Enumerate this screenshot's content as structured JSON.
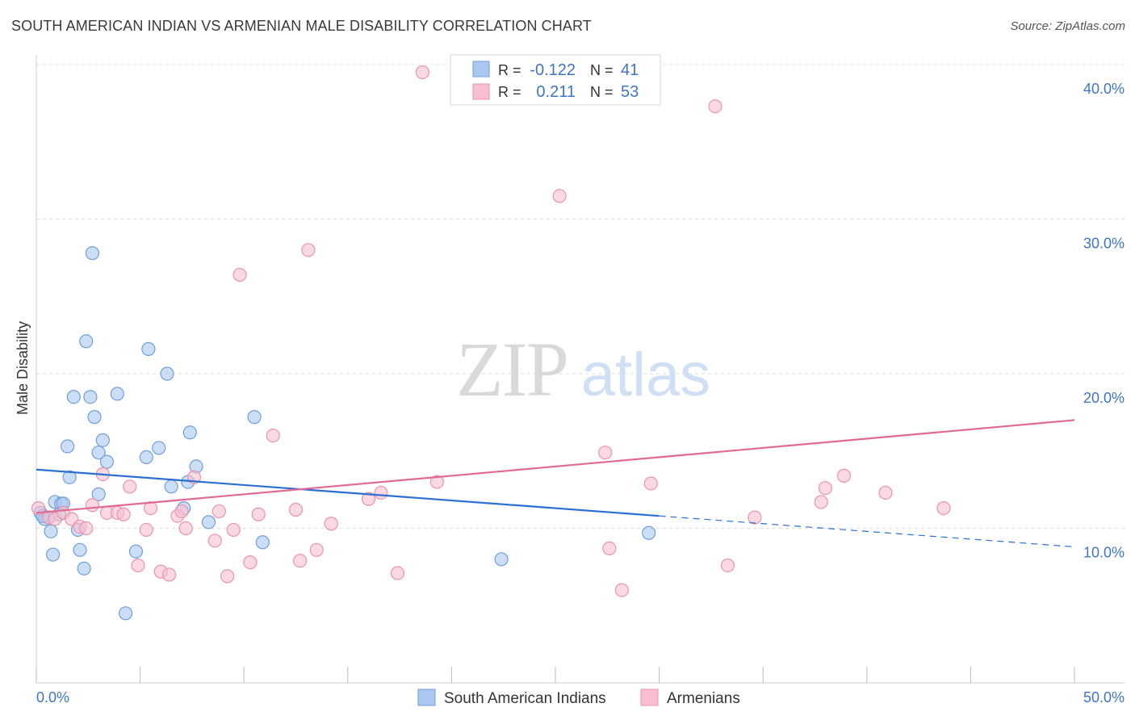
{
  "title": "SOUTH AMERICAN INDIAN VS ARMENIAN MALE DISABILITY CORRELATION CHART",
  "source": "Source: ZipAtlas.com",
  "watermark": {
    "zip": "ZIP",
    "atlas": "atlas"
  },
  "colors": {
    "blue_fill": "#aac8ef",
    "blue_stroke": "#6f9fdc",
    "blue_line": "#2a6fd1",
    "pink_fill": "#f7bfd0",
    "pink_stroke": "#ea93ad",
    "pink_line": "#e06a94",
    "tick_text": "#3f74c4",
    "grid": "#dddddd"
  },
  "legend": {
    "rows": [
      {
        "r_label": "R =",
        "r_value": "-0.122",
        "n_label": "N =",
        "n_value": "41"
      },
      {
        "r_label": "R =",
        "r_value": "0.211",
        "n_label": "N =",
        "n_value": "53"
      }
    ]
  },
  "chart_data": {
    "type": "scatter",
    "title": "SOUTH AMERICAN INDIAN VS ARMENIAN MALE DISABILITY CORRELATION CHART",
    "xlabel": "",
    "ylabel": "Male Disability",
    "xlim": [
      0,
      50
    ],
    "ylim": [
      0,
      40
    ],
    "x_ticks": [
      0,
      5,
      10,
      15,
      20,
      25,
      30,
      35,
      40,
      45,
      50
    ],
    "x_tick_labels": {
      "0": "0.0%",
      "50": "50.0%"
    },
    "y_ticks": [
      10,
      20,
      30,
      40
    ],
    "y_tick_labels": [
      "10.0%",
      "20.0%",
      "30.0%",
      "40.0%"
    ],
    "grid": true,
    "legend_position": "top-center",
    "series": [
      {
        "name": "South American Indians",
        "color": "#aac8ef",
        "r": -0.122,
        "n": 41,
        "trend": {
          "x0": 0,
          "y0": 13.8,
          "x1": 30,
          "y1": 10.8,
          "dashed_to_x": 50,
          "dashed_to_y": 8.8
        },
        "points": [
          [
            0.2,
            11.0
          ],
          [
            0.4,
            10.6
          ],
          [
            0.6,
            10.7
          ],
          [
            0.7,
            9.8
          ],
          [
            0.8,
            8.3
          ],
          [
            0.9,
            11.7
          ],
          [
            1.1,
            10.9
          ],
          [
            1.2,
            11.6
          ],
          [
            1.3,
            11.6
          ],
          [
            1.5,
            15.3
          ],
          [
            1.6,
            13.3
          ],
          [
            1.8,
            18.5
          ],
          [
            2.0,
            9.9
          ],
          [
            2.1,
            8.6
          ],
          [
            2.3,
            7.4
          ],
          [
            2.4,
            22.1
          ],
          [
            2.6,
            18.5
          ],
          [
            2.7,
            27.8
          ],
          [
            2.8,
            17.2
          ],
          [
            3.0,
            14.9
          ],
          [
            3.0,
            12.2
          ],
          [
            3.2,
            15.7
          ],
          [
            3.4,
            14.3
          ],
          [
            3.9,
            18.7
          ],
          [
            4.3,
            4.5
          ],
          [
            4.8,
            8.5
          ],
          [
            5.3,
            14.6
          ],
          [
            5.4,
            21.6
          ],
          [
            5.9,
            15.2
          ],
          [
            6.3,
            20.0
          ],
          [
            6.5,
            12.7
          ],
          [
            7.1,
            11.3
          ],
          [
            7.3,
            13.0
          ],
          [
            7.4,
            16.2
          ],
          [
            7.7,
            14.0
          ],
          [
            8.3,
            10.4
          ],
          [
            10.5,
            17.2
          ],
          [
            10.9,
            9.1
          ],
          [
            22.4,
            8.0
          ],
          [
            29.5,
            9.7
          ],
          [
            0.3,
            10.8
          ]
        ]
      },
      {
        "name": "Armenians",
        "color": "#f7bfd0",
        "r": 0.211,
        "n": 53,
        "trend": {
          "x0": 0,
          "y0": 11.0,
          "x1": 50,
          "y1": 17.0
        },
        "points": [
          [
            0.1,
            11.3
          ],
          [
            0.6,
            10.7
          ],
          [
            0.9,
            10.6
          ],
          [
            1.3,
            11.0
          ],
          [
            1.7,
            10.6
          ],
          [
            2.1,
            10.1
          ],
          [
            2.4,
            10.0
          ],
          [
            2.7,
            11.5
          ],
          [
            3.2,
            13.5
          ],
          [
            3.4,
            11.0
          ],
          [
            3.9,
            11.0
          ],
          [
            4.2,
            10.9
          ],
          [
            4.5,
            12.7
          ],
          [
            4.9,
            7.6
          ],
          [
            5.3,
            9.9
          ],
          [
            5.5,
            11.3
          ],
          [
            6.0,
            7.2
          ],
          [
            6.4,
            7.0
          ],
          [
            6.8,
            10.8
          ],
          [
            7.0,
            11.1
          ],
          [
            7.2,
            10.0
          ],
          [
            7.6,
            13.3
          ],
          [
            8.6,
            9.2
          ],
          [
            8.8,
            11.1
          ],
          [
            9.2,
            6.9
          ],
          [
            9.5,
            9.9
          ],
          [
            9.8,
            26.4
          ],
          [
            10.3,
            7.8
          ],
          [
            10.7,
            10.9
          ],
          [
            11.4,
            16.0
          ],
          [
            12.5,
            11.2
          ],
          [
            12.7,
            7.9
          ],
          [
            13.1,
            28.0
          ],
          [
            13.5,
            8.6
          ],
          [
            14.2,
            10.3
          ],
          [
            16.0,
            11.9
          ],
          [
            16.6,
            12.3
          ],
          [
            17.4,
            7.1
          ],
          [
            18.6,
            39.5
          ],
          [
            19.3,
            13.0
          ],
          [
            25.2,
            31.5
          ],
          [
            27.4,
            14.9
          ],
          [
            27.6,
            8.7
          ],
          [
            28.2,
            6.0
          ],
          [
            29.6,
            12.9
          ],
          [
            32.7,
            37.3
          ],
          [
            33.3,
            7.6
          ],
          [
            34.6,
            10.7
          ],
          [
            37.8,
            11.7
          ],
          [
            38.0,
            12.6
          ],
          [
            38.9,
            13.4
          ],
          [
            40.9,
            12.3
          ],
          [
            43.7,
            11.3
          ]
        ]
      }
    ]
  }
}
